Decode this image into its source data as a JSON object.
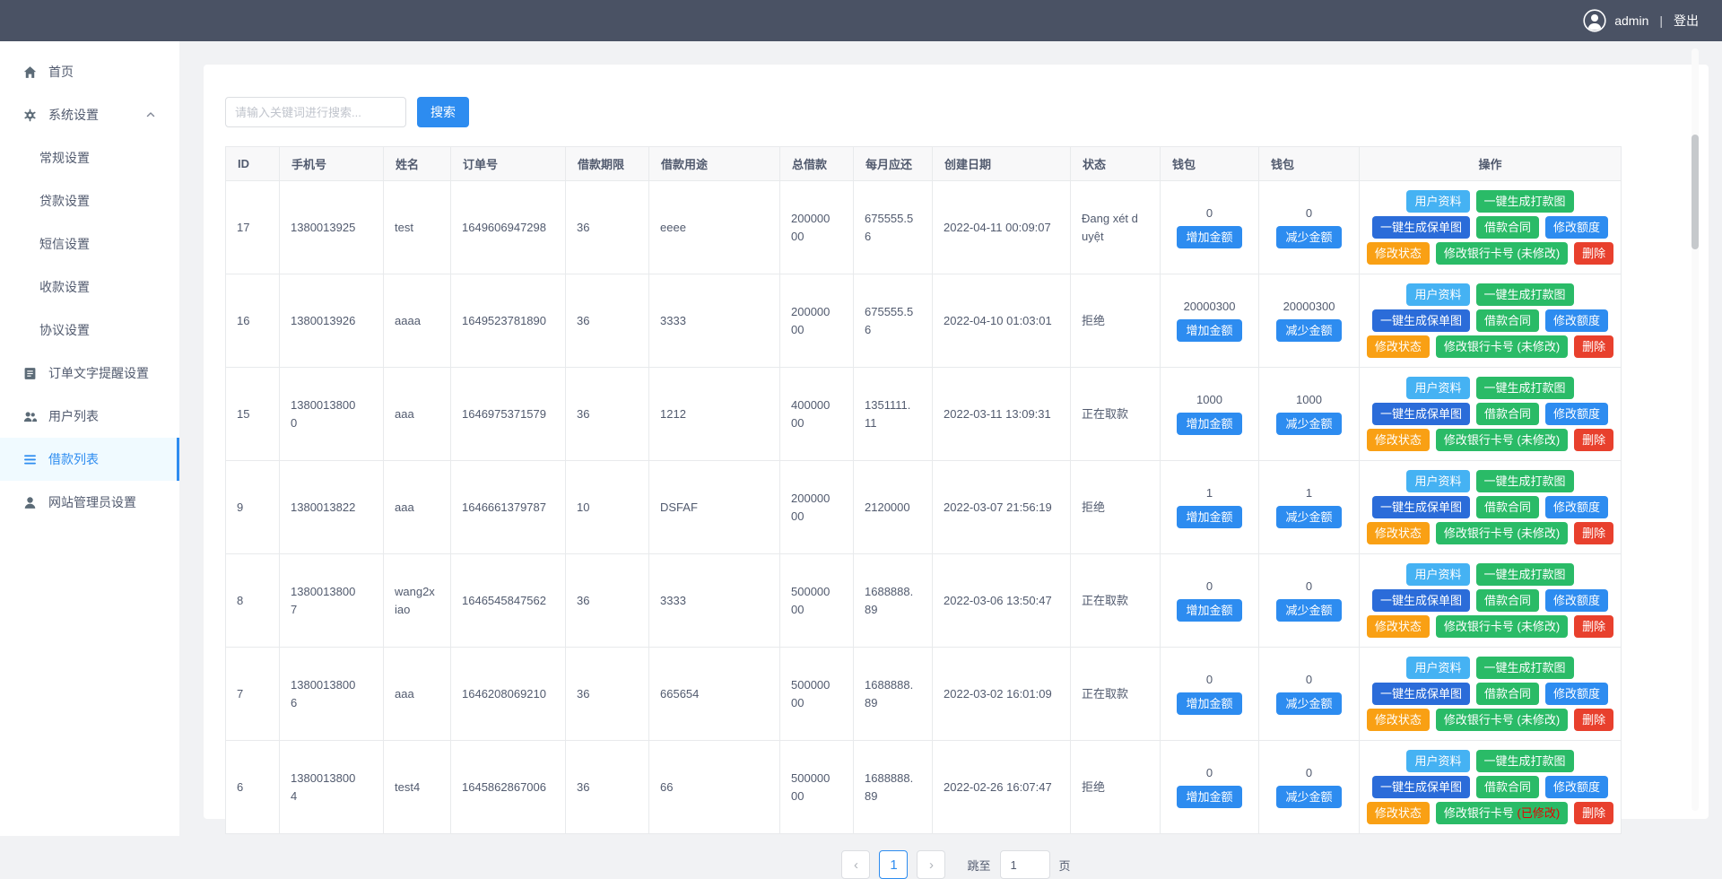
{
  "navbar": {
    "username": "admin",
    "separator": "|",
    "logout": "登出"
  },
  "sidebar": {
    "items": [
      {
        "key": "dashboard",
        "label": "首页",
        "icon": "home",
        "type": "parent"
      },
      {
        "key": "system-settings",
        "label": "系统设置",
        "icon": "gear",
        "type": "parent",
        "chevron": "up"
      },
      {
        "key": "general-settings",
        "label": "常规设置",
        "type": "child"
      },
      {
        "key": "loan-settings",
        "label": "贷款设置",
        "type": "child"
      },
      {
        "key": "sms-settings",
        "label": "短信设置",
        "type": "child"
      },
      {
        "key": "payment-settings",
        "label": "收款设置",
        "type": "child"
      },
      {
        "key": "agreement-settings",
        "label": "协议设置",
        "type": "child"
      },
      {
        "key": "order-text-reminder-settings",
        "label": "订单文字提醒设置",
        "icon": "doc",
        "type": "parent"
      },
      {
        "key": "user-list",
        "label": "用户列表",
        "icon": "users",
        "type": "parent"
      },
      {
        "key": "loan-list",
        "label": "借款列表",
        "icon": "list",
        "type": "parent",
        "active": true
      },
      {
        "key": "admin-settings",
        "label": "网站管理员设置",
        "icon": "person",
        "type": "parent"
      }
    ]
  },
  "search": {
    "placeholder": "请输入关键词进行搜索...",
    "button": "搜索"
  },
  "table": {
    "headers": [
      "ID",
      "手机号",
      "姓名",
      "订单号",
      "借款期限",
      "借款用途",
      "总借款",
      "每月应还",
      "创建日期",
      "状态",
      "钱包",
      "钱包",
      "操作"
    ],
    "wallet_buttons": {
      "add": "增加金额",
      "subtract": "减少金额"
    },
    "actions": {
      "user_profile": "用户资料",
      "generate_payment_image": "一键生成打款图",
      "generate_policy_image": "一键生成保单图",
      "loan_contract": "借款合同",
      "modify_quota": "修改额度",
      "modify_status": "修改状态",
      "modify_bank_card": "修改银行卡号",
      "delete": "删除"
    },
    "rows": [
      {
        "id": "17",
        "phone": "1380013925",
        "name": "test",
        "order_no": "1649606947298",
        "term": "36",
        "purpose": "eeee",
        "total": "20000000",
        "monthly": "675555.56",
        "created": "2022-04-11 00:09:07",
        "status": "Đang xét duyệt",
        "wallet1": "0",
        "wallet2": "0",
        "bank_note": "(未修改)",
        "bank_modified": false
      },
      {
        "id": "16",
        "phone": "1380013926",
        "name": "aaaa",
        "order_no": "1649523781890",
        "term": "36",
        "purpose": "3333",
        "total": "20000000",
        "monthly": "675555.56",
        "created": "2022-04-10 01:03:01",
        "status": "拒绝",
        "wallet1": "20000300",
        "wallet2": "20000300",
        "bank_note": "(未修改)",
        "bank_modified": false
      },
      {
        "id": "15",
        "phone": "13800138000",
        "name": "aaa",
        "order_no": "1646975371579",
        "term": "36",
        "purpose": "1212",
        "total": "40000000",
        "monthly": "1351111.11",
        "created": "2022-03-11 13:09:31",
        "status": "正在取款",
        "wallet1": "1000",
        "wallet2": "1000",
        "bank_note": "(未修改)",
        "bank_modified": false
      },
      {
        "id": "9",
        "phone": "1380013822",
        "name": "aaa",
        "order_no": "1646661379787",
        "term": "10",
        "purpose": "DSFAF",
        "total": "20000000",
        "monthly": "2120000",
        "created": "2022-03-07 21:56:19",
        "status": "拒绝",
        "wallet1": "1",
        "wallet2": "1",
        "bank_note": "(未修改)",
        "bank_modified": false
      },
      {
        "id": "8",
        "phone": "13800138007",
        "name": "wang2xiao",
        "order_no": "1646545847562",
        "term": "36",
        "purpose": "3333",
        "total": "50000000",
        "monthly": "1688888.89",
        "created": "2022-03-06 13:50:47",
        "status": "正在取款",
        "wallet1": "0",
        "wallet2": "0",
        "bank_note": "(未修改)",
        "bank_modified": false
      },
      {
        "id": "7",
        "phone": "13800138006",
        "name": "aaa",
        "order_no": "1646208069210",
        "term": "36",
        "purpose": "665654",
        "total": "50000000",
        "monthly": "1688888.89",
        "created": "2022-03-02 16:01:09",
        "status": "正在取款",
        "wallet1": "0",
        "wallet2": "0",
        "bank_note": "(未修改)",
        "bank_modified": false
      },
      {
        "id": "6",
        "phone": "13800138004",
        "name": "test4",
        "order_no": "1645862867006",
        "term": "36",
        "purpose": "66",
        "total": "50000000",
        "monthly": "1688888.89",
        "created": "2022-02-26 16:07:47",
        "status": "拒绝",
        "wallet1": "0",
        "wallet2": "0",
        "bank_note": "(已修改)",
        "bank_modified": true
      }
    ]
  },
  "pagination": {
    "prev": "‹",
    "current": "1",
    "next": "›",
    "jump_label": "跳至",
    "jump_value": "1",
    "page_unit": "页"
  },
  "colors": {
    "primary": "#2d8cf0",
    "sky": "#45b2f3",
    "green": "#2abb67",
    "deep_blue": "#2b6cd9",
    "orange": "#f9a014",
    "red": "#e8402d",
    "navbar": "#4a5264",
    "bank_note_red": "#e60000"
  }
}
